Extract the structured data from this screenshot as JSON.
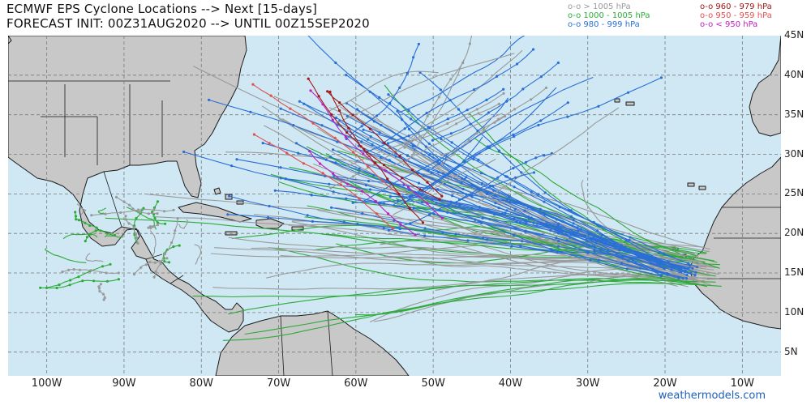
{
  "header": {
    "title_line1": "ECMWF EPS Cyclone Locations --> Next [15-days]",
    "title_line2": "FORECAST INIT: 00Z31AUG2020 --> UNTIL 00Z15SEP2020"
  },
  "legend": [
    {
      "symbol": "o-o",
      "label": "> 1005 hPa",
      "color": "#9a9a9a"
    },
    {
      "symbol": "o-o",
      "label": "1000 - 1005 hPa",
      "color": "#2eaa3a"
    },
    {
      "symbol": "o-o",
      "label": "980 - 999 hPa",
      "color": "#2a6fd6"
    },
    {
      "symbol": "o-o",
      "label": "960 - 979 hPa",
      "color": "#a01818"
    },
    {
      "symbol": "o-o",
      "label": "950 - 959 hPa",
      "color": "#e05050"
    },
    {
      "symbol": "o-o",
      "label": "< 950 hPa",
      "color": "#c020c0"
    }
  ],
  "map": {
    "region": "Atlantic Basin",
    "lon_range": [
      -105,
      -5
    ],
    "lat_range": [
      2,
      45
    ],
    "ocean_color": "#cfe8f3",
    "land_color": "#c8c8c8",
    "grid": true,
    "lat_labels": [
      "45N",
      "40N",
      "35N",
      "30N",
      "25N",
      "20N",
      "15N",
      "10N",
      "5N"
    ],
    "lon_labels": [
      "100W",
      "90W",
      "80W",
      "70W",
      "60W",
      "50W",
      "40W",
      "30W",
      "20W",
      "10W"
    ]
  },
  "credit": "weathermodels.com"
}
